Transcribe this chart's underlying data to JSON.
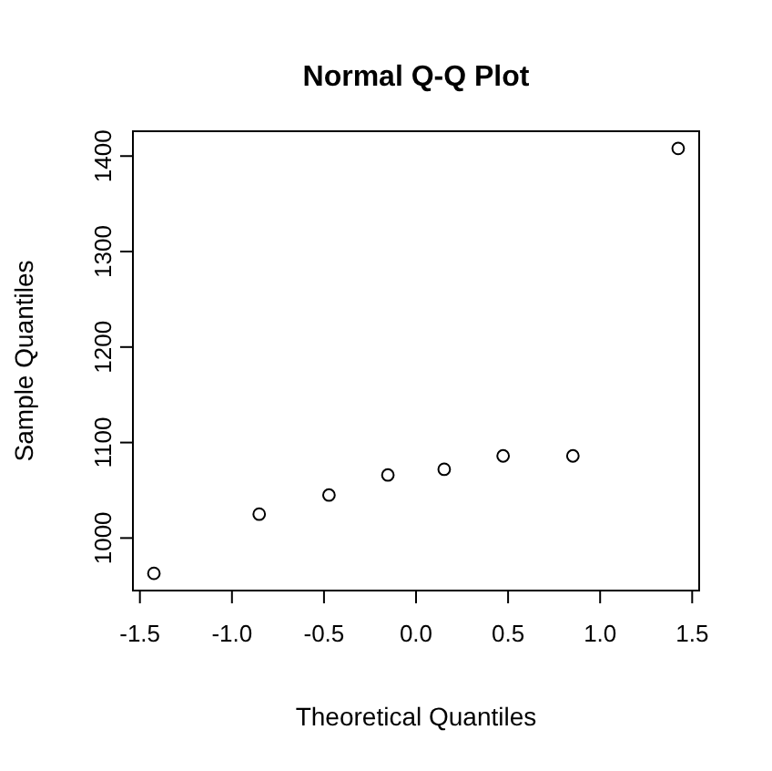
{
  "chart_data": {
    "type": "scatter",
    "title": "Normal Q-Q Plot",
    "xlabel": "Theoretical Quantiles",
    "ylabel": "Sample Quantiles",
    "x": [
      -1.424,
      -0.852,
      -0.473,
      -0.153,
      0.153,
      0.473,
      0.852,
      1.424
    ],
    "series": [
      {
        "color": "#000000",
        "values": [
          963,
          1025,
          1045,
          1066,
          1072,
          1086,
          1086,
          1408
        ]
      }
    ],
    "marker": "circle",
    "xlim": [
      -1.538,
      1.538
    ],
    "ylim": [
      945,
      1426
    ],
    "xticks": [
      {
        "value": -1.5,
        "label": "-1.5"
      },
      {
        "value": -1,
        "label": "-1.0"
      },
      {
        "value": -0.5,
        "label": "-0.5"
      },
      {
        "value": 0,
        "label": "0.0"
      },
      {
        "value": 0.5,
        "label": "0.5"
      },
      {
        "value": 1,
        "label": "1.0"
      },
      {
        "value": 1.5,
        "label": "1.5"
      }
    ],
    "yticks": [
      1000,
      1100,
      1200,
      1300,
      1400
    ]
  }
}
